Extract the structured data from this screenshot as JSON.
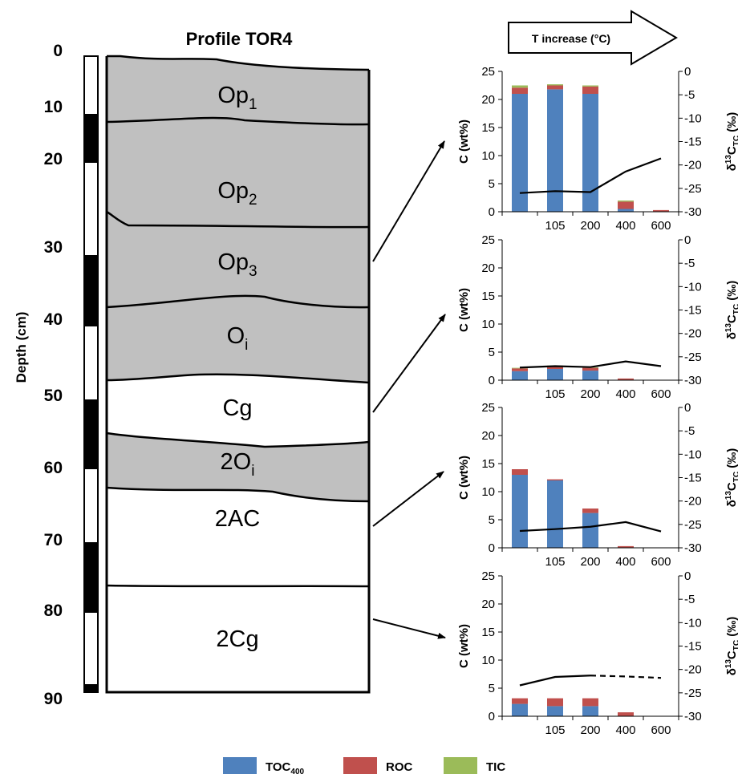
{
  "profile": {
    "title": "Profile TOR4",
    "depth_axis_label": "Depth (cm)",
    "depth_ticks": [
      "0",
      "10",
      "20",
      "30",
      "40",
      "50",
      "60",
      "70",
      "80",
      "90"
    ],
    "horizons": [
      {
        "base": "Op",
        "sub": "1"
      },
      {
        "base": "Op",
        "sub": "2"
      },
      {
        "base": "Op",
        "sub": "3"
      },
      {
        "base": "O",
        "sub": "i"
      },
      {
        "base": "Cg",
        "sub": ""
      },
      {
        "base": "2O",
        "sub": "i"
      },
      {
        "base": "2AC",
        "sub": ""
      },
      {
        "base": "2Cg",
        "sub": ""
      }
    ]
  },
  "t_increase_label": "T increase (°C)",
  "axis_labels": {
    "left_base": "C (wt%)",
    "right_delta": "δ",
    "right_sup": "13",
    "right_base": "C",
    "right_sub": "TC",
    "right_unit": " (‰)"
  },
  "legend": [
    {
      "base": "TOC",
      "sub": "400",
      "color": "#4f81bd"
    },
    {
      "base": "ROC",
      "sub": "",
      "color": "#c0504d"
    },
    {
      "base": "TIC",
      "sub": "",
      "color": "#9bbb59"
    }
  ],
  "chart_data": [
    {
      "type": "bar",
      "categories": [
        "",
        "105",
        "200",
        "400",
        "600"
      ],
      "ylim": [
        0,
        25
      ],
      "yticks": [
        "0",
        "5",
        "10",
        "15",
        "20",
        "25"
      ],
      "y2lim": [
        -30,
        0
      ],
      "y2ticks": [
        "0",
        "-5",
        "-10",
        "-15",
        "-20",
        "-25",
        "-30"
      ],
      "series": [
        {
          "name": "TOC400",
          "values": [
            21,
            21.8,
            21,
            0.5,
            0
          ]
        },
        {
          "name": "ROC",
          "values": [
            1.1,
            0.7,
            1.3,
            1.3,
            0.3
          ]
        },
        {
          "name": "TIC",
          "values": [
            0.4,
            0.2,
            0.2,
            0.2,
            0
          ]
        }
      ],
      "delta13C": {
        "solid": [
          -26,
          -25.6,
          -25.8,
          -21.4,
          -18.6
        ],
        "dashed": []
      }
    },
    {
      "type": "bar",
      "categories": [
        "",
        "105",
        "200",
        "400",
        "600"
      ],
      "ylim": [
        0,
        25
      ],
      "yticks": [
        "0",
        "5",
        "10",
        "15",
        "20",
        "25"
      ],
      "y2lim": [
        -30,
        0
      ],
      "y2ticks": [
        "0",
        "-5",
        "-10",
        "-15",
        "-20",
        "-25",
        "-30"
      ],
      "series": [
        {
          "name": "TOC400",
          "values": [
            1.6,
            2,
            1.7,
            0,
            0
          ]
        },
        {
          "name": "ROC",
          "values": [
            0.5,
            0.5,
            0.5,
            0.3,
            0
          ]
        },
        {
          "name": "TIC",
          "values": [
            0.1,
            0.1,
            0.1,
            0,
            0
          ]
        }
      ],
      "delta13C": {
        "solid": [
          -27.3,
          -27,
          -27.2,
          -26,
          -27
        ],
        "dashed": []
      }
    },
    {
      "type": "bar",
      "categories": [
        "",
        "105",
        "200",
        "400",
        "600"
      ],
      "ylim": [
        0,
        25
      ],
      "yticks": [
        "0",
        "5",
        "10",
        "15",
        "20",
        "25"
      ],
      "y2lim": [
        -30,
        0
      ],
      "y2ticks": [
        "0",
        "-5",
        "-10",
        "-15",
        "-20",
        "-25",
        "-30"
      ],
      "series": [
        {
          "name": "TOC400",
          "values": [
            13,
            12,
            6.2,
            0,
            0
          ]
        },
        {
          "name": "ROC",
          "values": [
            1,
            0.2,
            0.8,
            0.3,
            0
          ]
        },
        {
          "name": "TIC",
          "values": [
            0,
            0,
            0,
            0,
            0
          ]
        }
      ],
      "delta13C": {
        "solid": [
          -26.4,
          -26,
          -25.5,
          -24.5,
          -26.5
        ],
        "dashed": []
      }
    },
    {
      "type": "bar",
      "categories": [
        "",
        "105",
        "200",
        "400",
        "600"
      ],
      "ylim": [
        0,
        25
      ],
      "yticks": [
        "0",
        "5",
        "10",
        "15",
        "20",
        "25"
      ],
      "y2lim": [
        -30,
        0
      ],
      "y2ticks": [
        "0",
        "-5",
        "-10",
        "-15",
        "-20",
        "-25",
        "-30"
      ],
      "series": [
        {
          "name": "TOC400",
          "values": [
            2.2,
            1.8,
            1.8,
            0,
            0
          ]
        },
        {
          "name": "ROC",
          "values": [
            1,
            1.4,
            1.4,
            0.7,
            0
          ]
        },
        {
          "name": "TIC",
          "values": [
            0,
            0,
            0,
            0,
            0
          ]
        }
      ],
      "delta13C": {
        "solid": [
          -23.4,
          -21.6,
          -21.3
        ],
        "dashed": [
          -21.3,
          -21.5,
          -21.8
        ]
      }
    }
  ]
}
